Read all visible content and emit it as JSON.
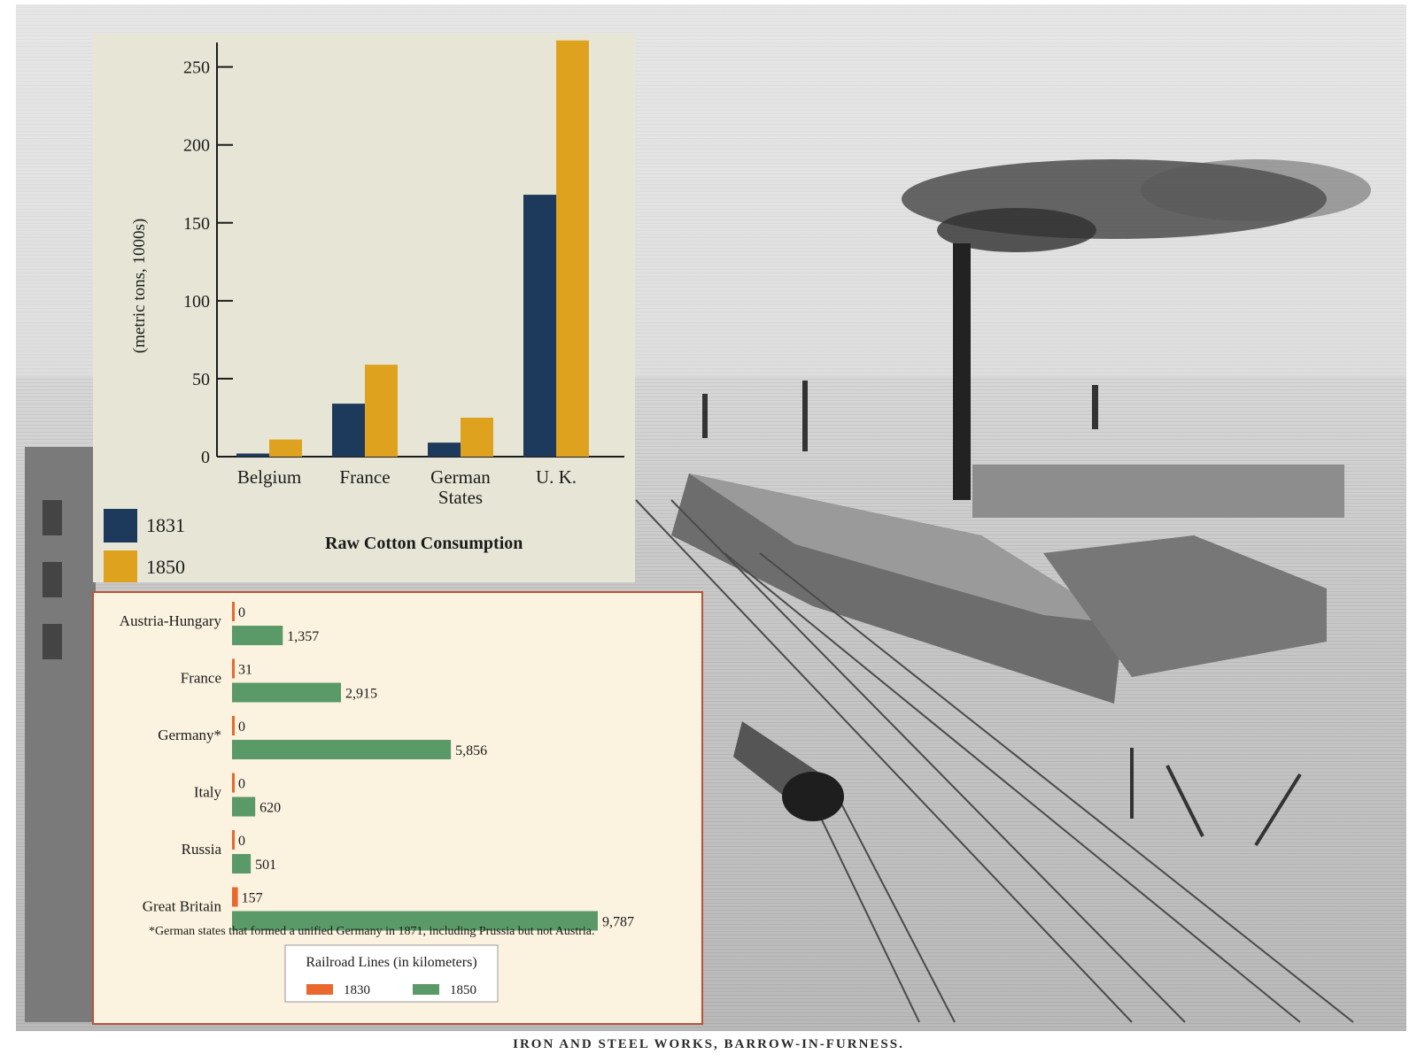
{
  "caption": "IRON AND STEEL WORKS, BARROW-IN-FURNESS.",
  "colors": {
    "y1831": "#1d3a5c",
    "y1850_cotton": "#dea21f",
    "y1830_rail": "#e8682e",
    "y1850_rail": "#5a9968"
  },
  "chart_data": [
    {
      "type": "bar",
      "title": "Raw Cotton Consumption",
      "ylabel": "(metric tons, 1000s)",
      "xlabel": "",
      "ylim": [
        0,
        260
      ],
      "yticks": [
        "0",
        "50",
        "100",
        "150",
        "200",
        "250"
      ],
      "categories": [
        "Belgium",
        "France",
        "German States",
        "U. K."
      ],
      "series": [
        {
          "name": "1831",
          "values": [
            2,
            34,
            9,
            168
          ]
        },
        {
          "name": "1850",
          "values": [
            11,
            59,
            25,
            267
          ]
        }
      ],
      "legend": "bottom-left",
      "grid": false
    },
    {
      "type": "bar",
      "orientation": "horizontal",
      "title": "Railroad Lines (in kilometers)",
      "categories": [
        "Austria-Hungary",
        "France",
        "Germany*",
        "Italy",
        "Russia",
        "Great Britain"
      ],
      "series": [
        {
          "name": "1830",
          "values": [
            0,
            31,
            0,
            0,
            0,
            157
          ],
          "labels": [
            "0",
            "31",
            "0",
            "0",
            "0",
            "157"
          ]
        },
        {
          "name": "1850",
          "values": [
            1357,
            2915,
            5856,
            620,
            501,
            9787
          ],
          "labels": [
            "1,357",
            "2,915",
            "5,856",
            "620",
            "501",
            "9,787"
          ]
        }
      ],
      "xlim": [
        0,
        9787
      ],
      "legend": "bottom-center",
      "footnote": "*German states that formed a unified Germany in 1871, including Prussia but not Austria."
    }
  ]
}
